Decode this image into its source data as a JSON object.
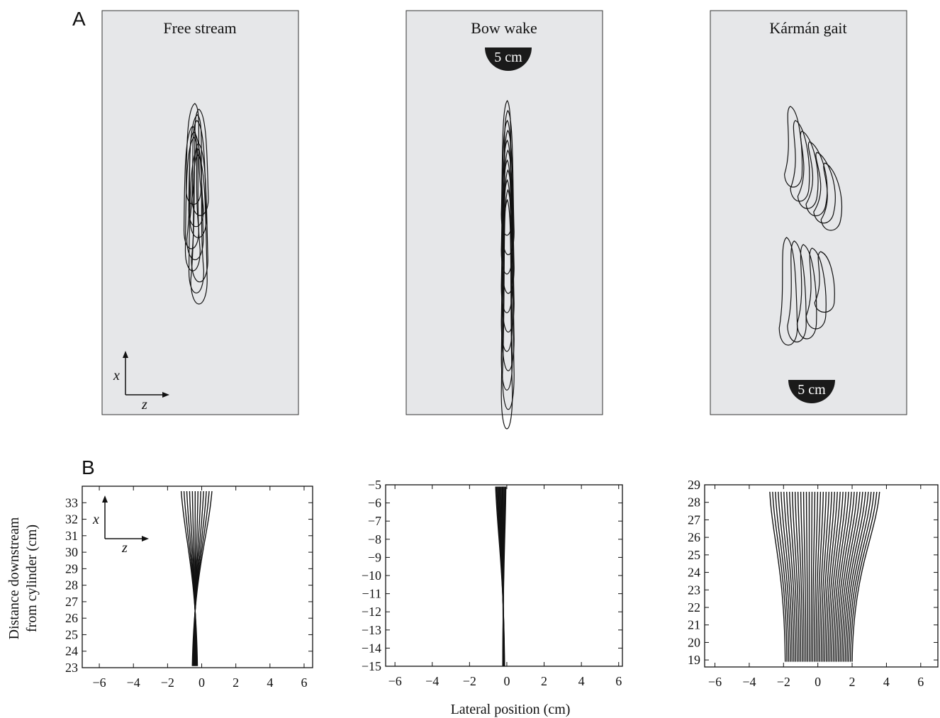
{
  "panel_labels": {
    "A": "A",
    "B": "B"
  },
  "panel_a": {
    "titles": [
      "Free stream",
      "Bow wake",
      "Kármán gait"
    ],
    "scale_bar_label": "5 cm",
    "axis_letters": {
      "x": "x",
      "z": "z"
    },
    "panel_fill": "#e6e7e9"
  },
  "chart_data": [
    {
      "type": "line",
      "title": "",
      "xlabel": "",
      "ylabel": "Distance downstream from cylinder (cm)",
      "ylabel_lines": [
        "Distance downstream",
        "from cylinder (cm)"
      ],
      "xlim": [
        -7,
        6.5
      ],
      "ylim": [
        23,
        34
      ],
      "xticks": [
        -6,
        -4,
        -2,
        0,
        2,
        4,
        6
      ],
      "yticks": [
        23,
        24,
        25,
        26,
        27,
        28,
        29,
        30,
        31,
        32,
        33
      ],
      "grid": false,
      "body_traces": {
        "count": 12,
        "head_y": 33.7,
        "tail_y": 23.1,
        "head_x_range": [
          -1.2,
          0.6
        ],
        "tail_x_range": [
          -0.55,
          -0.25
        ]
      },
      "axis_letters": {
        "x": "x",
        "z": "z"
      }
    },
    {
      "type": "line",
      "title": "",
      "xlabel": "",
      "ylabel": "",
      "xlim": [
        -6.5,
        6.2
      ],
      "ylim": [
        -15,
        -5
      ],
      "xticks": [
        -6,
        -4,
        -2,
        0,
        2,
        4,
        6
      ],
      "yticks": [
        -5,
        -6,
        -7,
        -8,
        -9,
        -10,
        -11,
        -12,
        -13,
        -14,
        -15
      ],
      "grid": false,
      "body_traces": {
        "count": 12,
        "head_y": -5.1,
        "tail_y": -15.0,
        "head_x_range": [
          -0.6,
          -0.05
        ],
        "tail_x_range": [
          -0.22,
          -0.12
        ]
      }
    },
    {
      "type": "line",
      "title": "",
      "xlabel": "Lateral position (cm)",
      "ylabel": "",
      "xlim": [
        -6.6,
        7
      ],
      "ylim": [
        18.6,
        29
      ],
      "xticks": [
        -6,
        -4,
        -2,
        0,
        2,
        4,
        6
      ],
      "yticks": [
        19,
        20,
        21,
        22,
        23,
        24,
        25,
        26,
        27,
        28,
        29
      ],
      "grid": false,
      "body_traces": {
        "count": 40,
        "head_y": 28.6,
        "tail_y": 18.9,
        "head_x_range": [
          -2.8,
          3.6
        ],
        "tail_x_range": [
          -1.9,
          2.0
        ]
      }
    }
  ]
}
